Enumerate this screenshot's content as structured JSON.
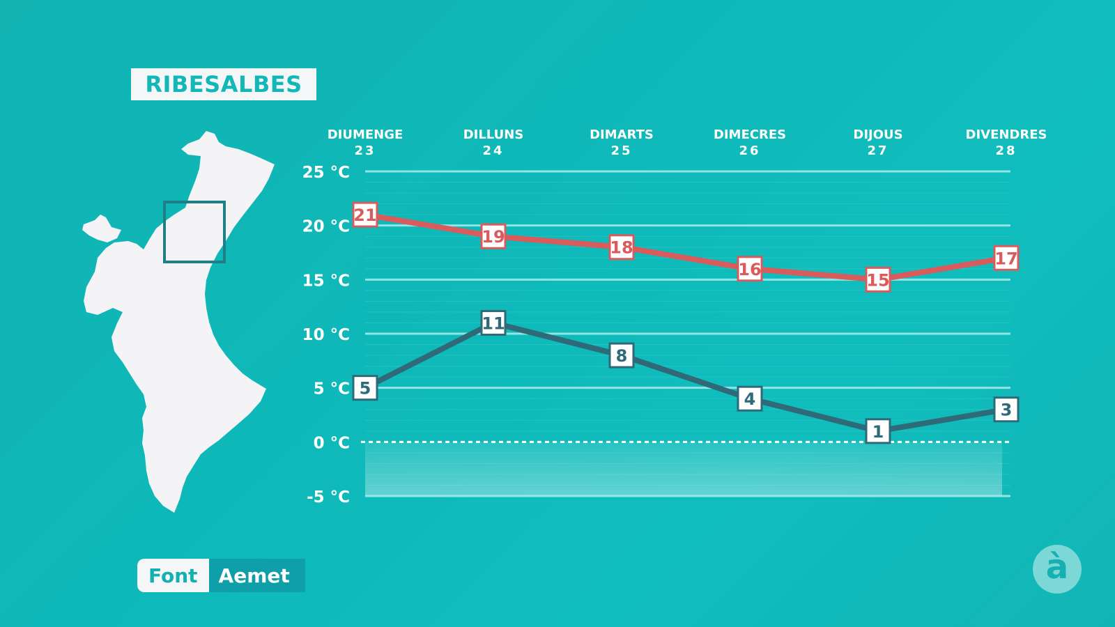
{
  "location": "RIBESALBES",
  "source": {
    "label": "Font",
    "name": "Aemet"
  },
  "logo_text": "à",
  "colors": {
    "max_line": "#d95b5b",
    "min_line": "#2f6a78",
    "grid": "#a8ecec",
    "text": "#ffffff"
  },
  "icons": {
    "map": "valencia-region-map-icon",
    "region_marker": "square-marker-icon"
  },
  "chart_data": {
    "type": "line",
    "categories": [
      {
        "day": "DIUMENGE",
        "date": "23"
      },
      {
        "day": "DILLUNS",
        "date": "24"
      },
      {
        "day": "DIMARTS",
        "date": "25"
      },
      {
        "day": "DIMECRES",
        "date": "26"
      },
      {
        "day": "DIJOUS",
        "date": "27"
      },
      {
        "day": "DIVENDRES",
        "date": "28"
      }
    ],
    "series": [
      {
        "values": [
          21,
          19,
          18,
          16,
          15,
          17
        ],
        "labels": [
          "21",
          "19",
          "18",
          "16",
          "15",
          "17"
        ],
        "color": "#d95b5b"
      },
      {
        "values": [
          5,
          11,
          8,
          4,
          1,
          3
        ],
        "labels": [
          "5",
          "11",
          "8",
          "4",
          "1",
          "3"
        ],
        "color": "#2f6a78"
      }
    ],
    "y_ticks": [
      {
        "value": 25,
        "label": "25 °C"
      },
      {
        "value": 20,
        "label": "20 °C"
      },
      {
        "value": 15,
        "label": "15 °C"
      },
      {
        "value": 10,
        "label": "10 °C"
      },
      {
        "value": 5,
        "label": "5 °C"
      },
      {
        "value": 0,
        "label": "0 °C"
      },
      {
        "value": -5,
        "label": "-5 °C"
      }
    ],
    "ylim": [
      -5,
      25
    ],
    "grid": true,
    "zero_line": "dashed"
  }
}
